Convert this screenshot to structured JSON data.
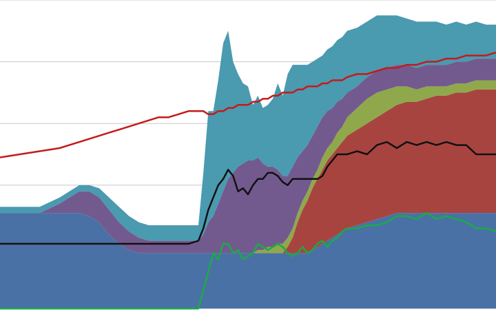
{
  "chart_data": {
    "type": "area",
    "title": "",
    "xlabel": "",
    "ylabel": "",
    "xlim": [
      0,
      100
    ],
    "ylim": [
      0,
      100
    ],
    "grid": true,
    "gridlines_y": [
      20,
      40,
      60,
      80,
      100
    ],
    "legend": "none",
    "x": [
      0,
      4,
      8,
      12,
      16,
      18,
      20,
      22,
      24,
      26,
      28,
      30,
      32,
      34,
      36,
      38,
      40,
      41,
      42,
      43,
      44,
      45,
      46,
      47,
      48,
      49,
      50,
      51,
      52,
      53,
      54,
      55,
      56,
      57,
      58,
      59,
      60,
      61,
      62,
      63,
      64,
      65,
      66,
      67,
      68,
      69,
      70,
      72,
      74,
      76,
      78,
      80,
      82,
      84,
      86,
      88,
      90,
      92,
      94,
      96,
      98,
      100
    ],
    "series": [
      {
        "kind": "stacked-area",
        "color": "#4a71a6",
        "values": [
          31,
          31,
          31,
          31,
          31,
          30,
          28,
          24,
          21,
          19,
          18,
          18,
          18,
          18,
          18,
          18,
          18,
          18,
          18,
          18,
          18,
          18,
          18,
          18,
          18,
          18,
          18,
          18,
          18,
          18,
          18,
          18,
          18,
          18,
          18,
          18,
          18,
          18,
          18,
          19,
          20,
          21,
          22,
          23,
          24,
          25,
          26,
          27,
          28,
          29,
          30,
          31,
          31,
          31,
          31,
          31,
          31,
          31,
          31,
          31,
          31,
          31
        ]
      },
      {
        "kind": "stacked-area",
        "color": "#ffffff",
        "values": [
          0,
          0,
          0,
          0,
          0,
          0,
          0,
          0,
          0,
          0,
          0,
          0,
          0,
          0,
          0,
          0,
          0,
          0,
          0,
          0,
          0,
          0,
          0,
          0,
          0,
          0,
          0,
          0,
          0,
          0,
          0,
          0,
          0,
          0,
          0,
          0,
          0,
          0,
          0,
          0,
          0,
          0,
          0,
          0,
          0,
          0,
          0,
          0,
          0,
          0,
          0,
          0,
          0,
          0,
          0,
          0,
          0,
          0,
          0,
          0,
          0,
          0
        ]
      },
      {
        "kind": "stacked-area",
        "color": "#a84440",
        "values": [
          0,
          0,
          0,
          0,
          0,
          0,
          0,
          0,
          0,
          0,
          0,
          0,
          0,
          0,
          0,
          0,
          0,
          0,
          0,
          0,
          0,
          0,
          0,
          0,
          0,
          0,
          0,
          0,
          0,
          0,
          0,
          0,
          0,
          0,
          2,
          5,
          10,
          14,
          17,
          20,
          22,
          24,
          26,
          27,
          28,
          29,
          30,
          31,
          32,
          33,
          34,
          35,
          36,
          36,
          37,
          38,
          38,
          39,
          39,
          40,
          40,
          40
        ]
      },
      {
        "kind": "stacked-area",
        "color": "#8fa84b",
        "values": [
          0,
          0,
          0,
          0,
          0,
          0,
          0,
          0,
          0,
          0,
          0,
          0,
          0,
          0,
          0,
          0,
          0,
          0,
          0,
          0,
          0,
          0,
          0,
          0,
          0,
          0,
          0,
          0,
          1,
          1,
          2,
          2,
          3,
          3,
          3,
          3,
          3,
          3,
          3,
          3,
          3,
          4,
          4,
          4,
          5,
          5,
          6,
          7,
          8,
          8,
          7,
          6,
          5,
          4,
          4,
          3,
          3,
          3,
          3,
          3,
          3,
          3
        ]
      },
      {
        "kind": "stacked-area",
        "color": "#725a8f",
        "values": [
          0,
          0,
          0,
          3,
          7,
          8,
          8,
          8,
          7,
          6,
          5,
          4,
          4,
          4,
          4,
          4,
          4,
          6,
          10,
          12,
          16,
          20,
          24,
          26,
          28,
          29,
          30,
          30,
          30,
          28,
          26,
          26,
          24,
          22,
          20,
          20,
          18,
          16,
          15,
          14,
          14,
          13,
          12,
          11,
          10,
          9,
          8,
          7,
          7,
          7,
          7,
          7,
          7,
          7,
          7,
          7,
          7,
          7,
          7,
          7,
          7,
          7
        ]
      },
      {
        "kind": "stacked-area",
        "color": "#4a9ab0",
        "values": [
          2,
          2,
          2,
          2,
          2,
          2,
          3,
          4,
          5,
          5,
          5,
          5,
          5,
          5,
          5,
          5,
          5,
          20,
          36,
          34,
          40,
          48,
          48,
          36,
          30,
          26,
          24,
          18,
          20,
          18,
          20,
          22,
          28,
          26,
          33,
          33,
          30,
          28,
          26,
          24,
          22,
          20,
          20,
          20,
          20,
          20,
          20,
          19,
          18,
          18,
          17,
          16,
          15,
          15,
          14,
          14,
          13,
          13,
          12,
          12,
          11,
          11
        ]
      },
      {
        "kind": "line",
        "color": "#c41a1a",
        "values": [
          49,
          50,
          51,
          52,
          54,
          55,
          56,
          57,
          58,
          59,
          60,
          61,
          62,
          62,
          63,
          64,
          64,
          64,
          63,
          63,
          64,
          64,
          65,
          65,
          66,
          66,
          66,
          67,
          67,
          68,
          68,
          69,
          69,
          70,
          70,
          70,
          71,
          71,
          72,
          72,
          72,
          73,
          73,
          74,
          74,
          74,
          75,
          76,
          76,
          77,
          78,
          78,
          79,
          79,
          80,
          80,
          81,
          81,
          82,
          82,
          82,
          83
        ]
      },
      {
        "kind": "line",
        "color": "#111111",
        "values": [
          21,
          21,
          21,
          21,
          21,
          21,
          21,
          21,
          21,
          21,
          21,
          21,
          21,
          21,
          21,
          21,
          22,
          26,
          32,
          36,
          40,
          42,
          45,
          43,
          38,
          39,
          37,
          40,
          42,
          42,
          44,
          44,
          43,
          41,
          40,
          42,
          42,
          42,
          42,
          42,
          42,
          43,
          46,
          48,
          50,
          50,
          50,
          51,
          50,
          53,
          54,
          52,
          54,
          53,
          54,
          53,
          54,
          53,
          53,
          50,
          50,
          50
        ]
      },
      {
        "kind": "line",
        "color": "#1aab47",
        "values": [
          0,
          0,
          0,
          0,
          0,
          0,
          0,
          0,
          0,
          0,
          0,
          0,
          0,
          0,
          0,
          0,
          0,
          6,
          12,
          18,
          16,
          21,
          21,
          18,
          19,
          16,
          17,
          18,
          21,
          20,
          19,
          20,
          21,
          20,
          18,
          17,
          18,
          20,
          18,
          19,
          21,
          22,
          20,
          22,
          23,
          25,
          26,
          26,
          27,
          27,
          28,
          30,
          30,
          29,
          31,
          29,
          30,
          29,
          28,
          26,
          26,
          25
        ]
      }
    ]
  }
}
